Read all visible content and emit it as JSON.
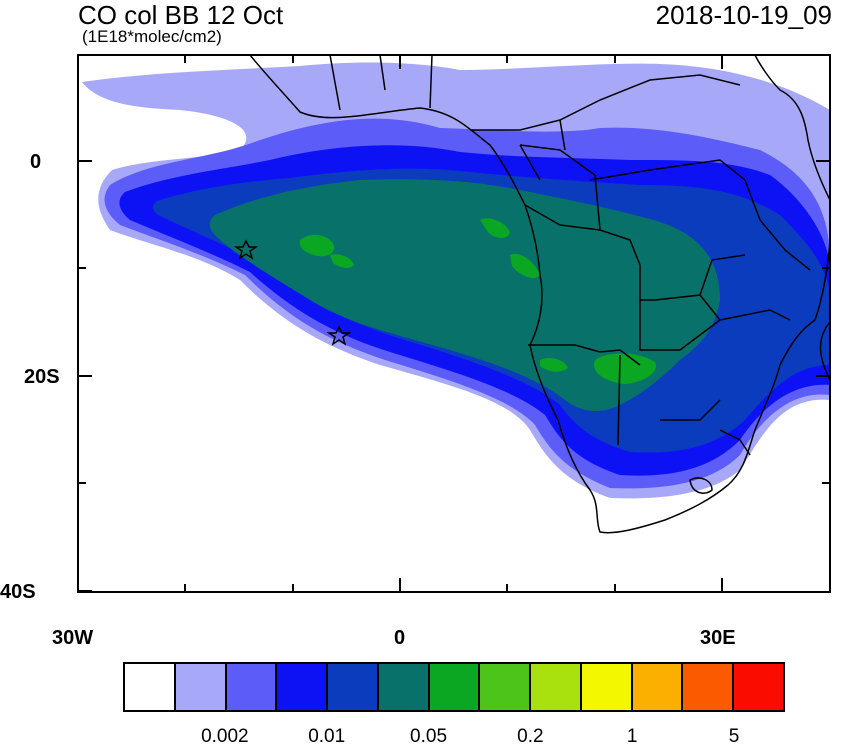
{
  "title": {
    "left": "CO col BB 12 Oct",
    "subtitle": "(1E18*molec/cm2)",
    "right": "2018-10-19_09"
  },
  "axes": {
    "x_ticks": [
      "30W",
      "0",
      "30E"
    ],
    "y_ticks": [
      "0",
      "20S",
      "40S"
    ]
  },
  "markers": {
    "type": "star",
    "count": 2
  },
  "colorbar": {
    "colors": [
      "#ffffff",
      "#a8a8f8",
      "#5c5cf8",
      "#0d12f5",
      "#0a3cbd",
      "#08726a",
      "#0ba722",
      "#4cc41a",
      "#a8e10e",
      "#f3f800",
      "#fbb000",
      "#fb5a00",
      "#fb0c00"
    ],
    "labels": [
      "0.002",
      "0.01",
      "0.05",
      "0.2",
      "1",
      "5"
    ]
  }
}
